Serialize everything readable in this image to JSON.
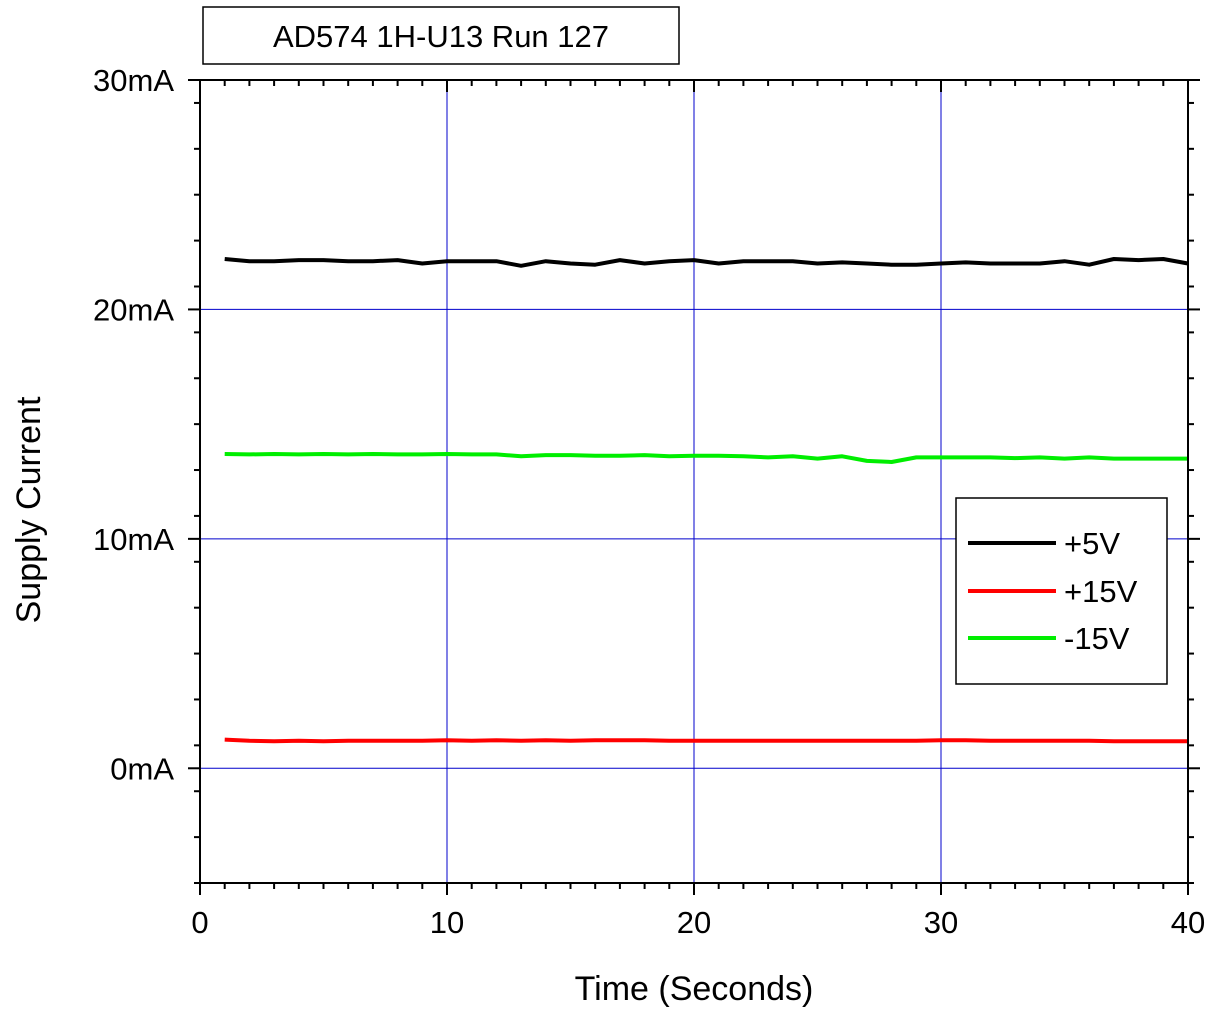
{
  "chart_data": {
    "type": "line",
    "title": "AD574 1H-U13 Run 127",
    "xlabel": "Time (Seconds)",
    "ylabel": "Supply Current",
    "xlim": [
      0,
      40
    ],
    "ylim": [
      -5,
      30
    ],
    "x_ticks": [
      0,
      10,
      20,
      30,
      40
    ],
    "x_tick_labels": [
      "0",
      "10",
      "20",
      "30",
      "40"
    ],
    "y_ticks": [
      0,
      10,
      20,
      30
    ],
    "y_tick_labels": [
      "0mA",
      "10mA",
      "20mA",
      "30mA"
    ],
    "grid": true,
    "legend_position": "right",
    "x": [
      1,
      2,
      3,
      4,
      5,
      6,
      7,
      8,
      9,
      10,
      11,
      12,
      13,
      14,
      15,
      16,
      17,
      18,
      19,
      20,
      21,
      22,
      23,
      24,
      25,
      26,
      27,
      28,
      29,
      30,
      31,
      32,
      33,
      34,
      35,
      36,
      37,
      38,
      39,
      40
    ],
    "series": [
      {
        "name": "+5V",
        "color": "#000000",
        "values": [
          22.2,
          22.1,
          22.1,
          22.15,
          22.15,
          22.1,
          22.1,
          22.15,
          22.0,
          22.1,
          22.1,
          22.1,
          21.9,
          22.1,
          22.0,
          21.95,
          22.15,
          22.0,
          22.1,
          22.15,
          22.0,
          22.1,
          22.1,
          22.1,
          22.0,
          22.05,
          22.0,
          21.95,
          21.95,
          22.0,
          22.05,
          22.0,
          22.0,
          22.0,
          22.1,
          21.95,
          22.2,
          22.15,
          22.2,
          22.0
        ]
      },
      {
        "name": "+15V",
        "color": "#ff0000",
        "values": [
          1.25,
          1.2,
          1.18,
          1.2,
          1.18,
          1.2,
          1.2,
          1.2,
          1.2,
          1.22,
          1.2,
          1.22,
          1.2,
          1.22,
          1.2,
          1.22,
          1.22,
          1.22,
          1.2,
          1.2,
          1.2,
          1.2,
          1.2,
          1.2,
          1.2,
          1.2,
          1.2,
          1.2,
          1.2,
          1.22,
          1.22,
          1.2,
          1.2,
          1.2,
          1.2,
          1.2,
          1.18,
          1.18,
          1.18,
          1.18
        ]
      },
      {
        "name": "-15V",
        "color": "#00ee00",
        "values": [
          13.7,
          13.68,
          13.7,
          13.68,
          13.7,
          13.68,
          13.7,
          13.68,
          13.68,
          13.7,
          13.68,
          13.68,
          13.6,
          13.65,
          13.65,
          13.62,
          13.62,
          13.65,
          13.6,
          13.62,
          13.62,
          13.6,
          13.55,
          13.6,
          13.5,
          13.6,
          13.4,
          13.35,
          13.55,
          13.55,
          13.55,
          13.55,
          13.52,
          13.55,
          13.5,
          13.55,
          13.5,
          13.5,
          13.5,
          13.5
        ]
      }
    ]
  }
}
